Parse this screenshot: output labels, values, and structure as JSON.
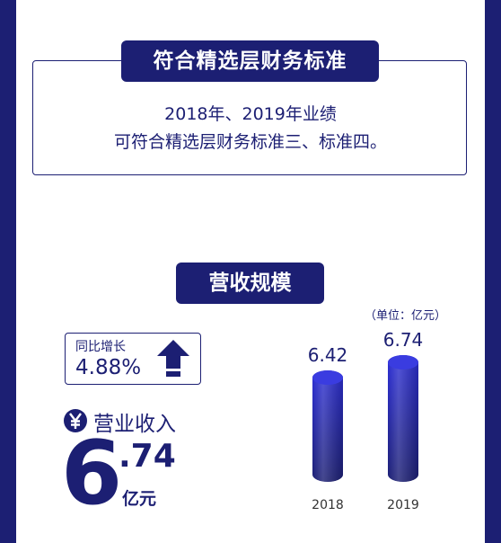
{
  "section1": {
    "title": "符合精选层财务标准",
    "line1": "2018年、2019年业绩",
    "line2": "可符合精选层财务标准三、标准四。"
  },
  "section2": {
    "title": "营收规模"
  },
  "growth": {
    "label": "同比增长",
    "value": "4.88%"
  },
  "revenue": {
    "icon": "yen-icon",
    "label": "营业收入",
    "integer": "6",
    "decimal": ".74",
    "unit": "亿元"
  },
  "chart_data": {
    "type": "bar",
    "unit_note": "（单位：亿元）",
    "categories": [
      "2018",
      "2019"
    ],
    "values": [
      6.42,
      6.74
    ],
    "value_labels": [
      "6.42",
      "6.74"
    ],
    "colors": {
      "bar_top": "#2d2fd6",
      "bar_bottom": "#1c1f73"
    }
  },
  "colors": {
    "brand": "#1c1f73",
    "accent": "#2d2fd6",
    "background": "#ffffff"
  }
}
